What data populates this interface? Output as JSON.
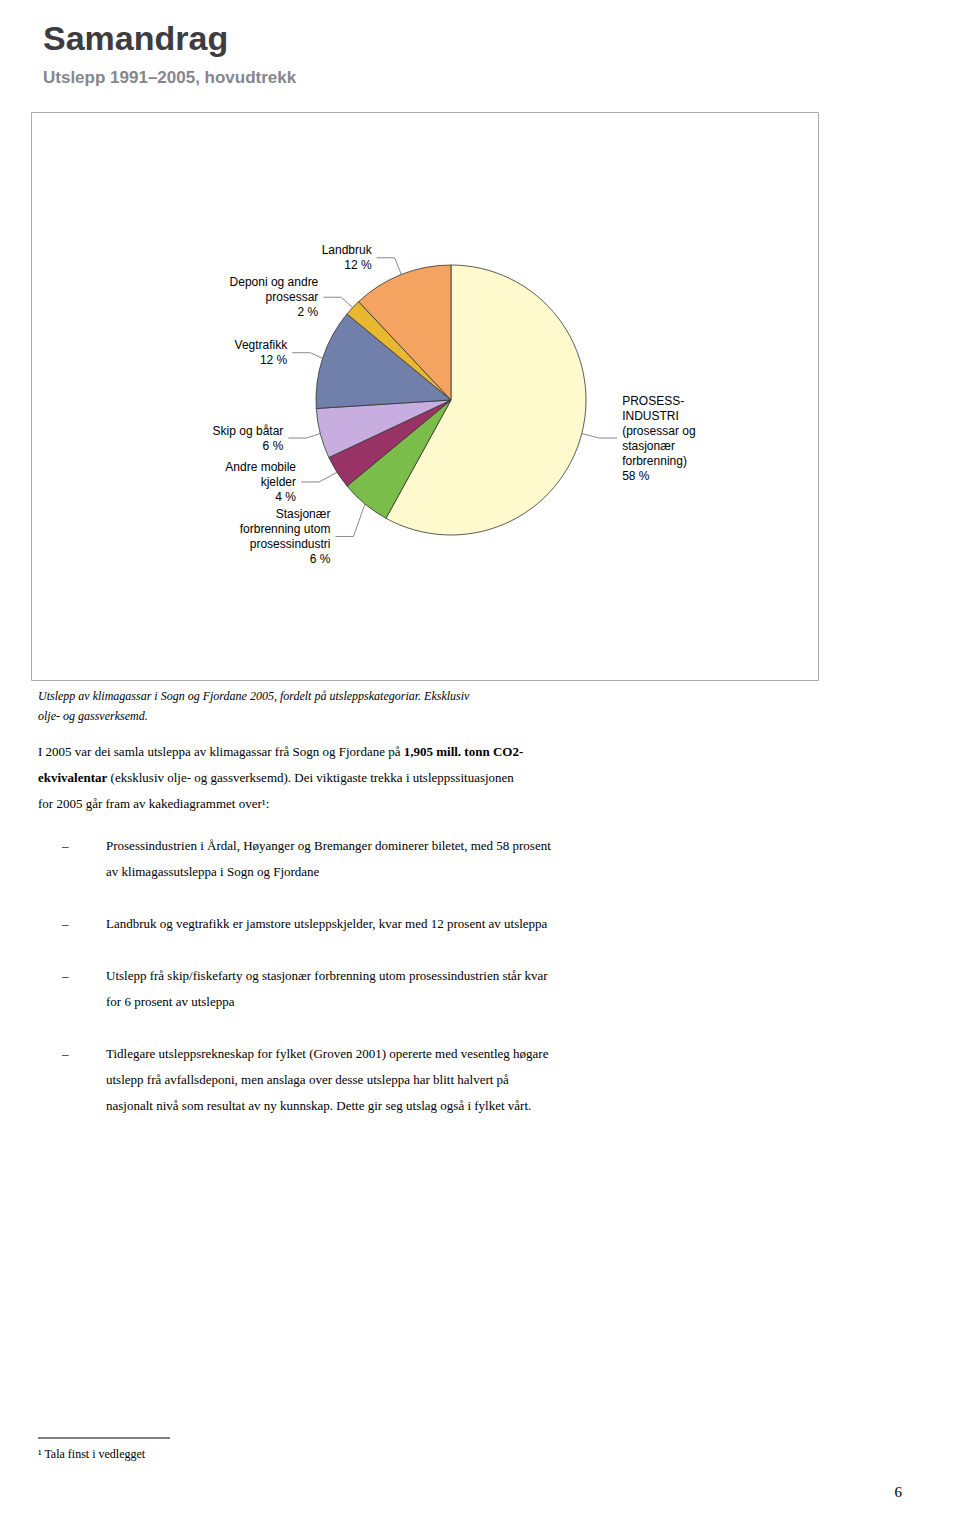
{
  "chart_data": {
    "type": "pie",
    "title": "Samandrag",
    "subtitle": "Utslepp 1991–2005, hovudtrekk",
    "categories": [
      "PROSESS-\nINDUSTRI\n(prosessar og\nstasjonær\nforbrenning)",
      "Stasjonær\nforbrenning utom\nprosessindustri",
      "Andre mobile\nkjelder",
      "Skip og båtar",
      "Vegtrafikk",
      "Deponi og andre\nprosessar",
      "Landbruk"
    ],
    "values": [
      58,
      6,
      4,
      6,
      12,
      2,
      12
    ],
    "value_labels": [
      "58 %",
      "6 %",
      "4 %",
      "6 %",
      "12 %",
      "2 %",
      "12 %"
    ],
    "colors": [
      "#FFFACD",
      "#7BBD4A",
      "#993366",
      "#C8AEE0",
      "#7080AA",
      "#E8B830",
      "#F4A460"
    ],
    "data_labels": true,
    "legend": false,
    "caption": [
      "Utslepp av klimagassar i Sogn og Fjordane 2005, fordelt på utsleppskategoriar. Eksklusiv",
      "olje- og gassverksemd."
    ],
    "body": [
      [
        {
          "text": "I 2005 var dei samla utsleppa av klimagassar frå Sogn og Fjordane på ",
          "bold": false
        },
        {
          "text": "1,905 mill. tonn CO2-",
          "bold": true
        }
      ],
      [
        {
          "text": "ekvivalentar",
          "bold": true
        },
        {
          "text": " (eksklusiv olje- og gassverksemd). Dei viktigaste trekka i utsleppssituasjonen",
          "bold": false
        }
      ],
      [
        {
          "text": "for 2005 går fram av kakediagrammet over¹:",
          "bold": false
        }
      ]
    ],
    "bullet_marker": "–",
    "bullets": [
      "Prosessindustrien i Årdal, Høyanger og Bremanger dominerer biletet, med 58 prosent\nav klimagassutsleppa i Sogn og Fjordane",
      "Landbruk og vegtrafikk er jamstore utsleppskjelder, kvar med 12 prosent av utsleppa",
      "Utslepp frå skip/fiskefarty og stasjonær forbrenning utom prosessindustrien står kvar\nfor 6 prosent av utsleppa",
      "Tidlegare utsleppsrekneskap for fylket (Groven 2001) opererte med vesentleg høgare\nutslepp frå avfallsdeponi, men anslaga over desse utsleppa har blitt halvert på\nnasjonalt nivå som resultat av ny kunnskap. Dette gir seg utslag også i fylket vårt."
    ],
    "footnote": "¹ Tala finst i vedlegget",
    "page_number": "6"
  }
}
